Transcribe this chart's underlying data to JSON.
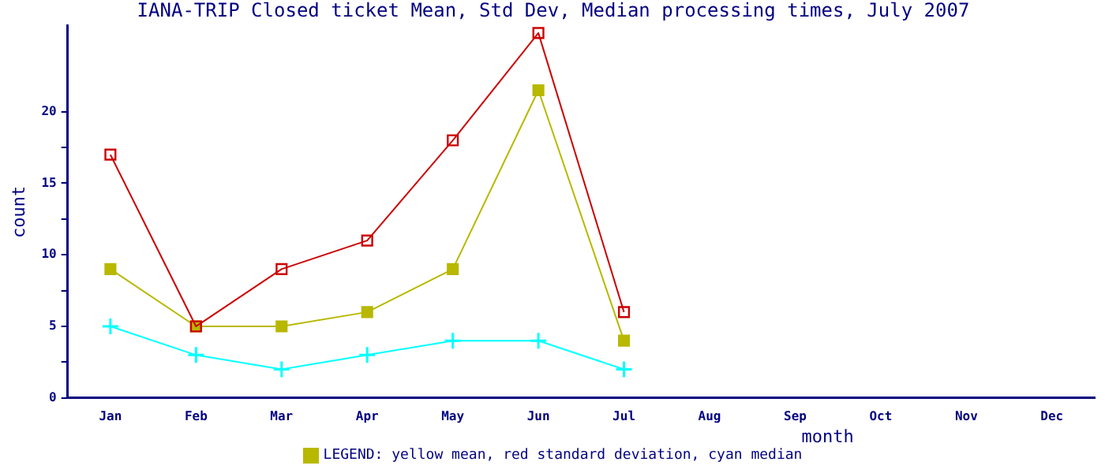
{
  "chart_data": {
    "type": "line",
    "title": "IANA-TRIP Closed ticket Mean, Std Dev, Median processing times, July 2007",
    "xlabel": "month",
    "ylabel": "count",
    "categories": [
      "Jan",
      "Feb",
      "Mar",
      "Apr",
      "May",
      "Jun",
      "Jul",
      "Aug",
      "Sep",
      "Oct",
      "Nov",
      "Dec"
    ],
    "series": [
      {
        "color": "#cc0000",
        "marker": "square",
        "values": [
          17,
          5,
          9,
          11,
          18,
          25.5,
          6,
          null,
          null,
          null,
          null,
          null
        ]
      },
      {
        "color": "#b8b800",
        "marker": "square",
        "values": [
          9,
          5,
          5,
          6,
          9,
          21.5,
          4,
          null,
          null,
          null,
          null,
          null
        ]
      },
      {
        "color": "#00ffff",
        "marker": "cross",
        "values": [
          5,
          3,
          2,
          3,
          4,
          4,
          2,
          null,
          null,
          null,
          null,
          null
        ]
      }
    ],
    "ylim": [
      0,
      26
    ],
    "yticks": [
      0,
      {
        "value": 2.5,
        "label": null
      },
      5,
      {
        "value": 7.5,
        "label": null
      },
      10,
      {
        "value": 12.5,
        "label": null
      },
      15,
      {
        "value": 17.5,
        "label": null
      },
      20
    ],
    "grid": false,
    "legend": false,
    "annotations": [
      "LEGEND: yellow mean, red standard deviation, cyan median"
    ]
  }
}
